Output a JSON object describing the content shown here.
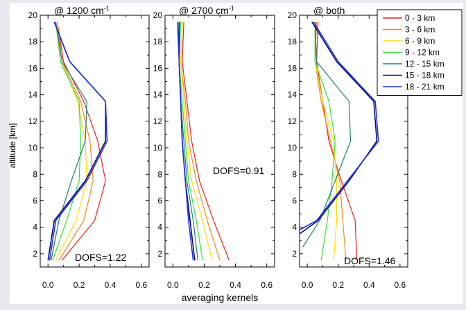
{
  "chart_data": [
    {
      "type": "line",
      "title": "@ 1200 cm",
      "title_sup": "-1",
      "ylabel": "altitude [km]",
      "xlim": [
        -0.05,
        0.65
      ],
      "ylim": [
        1,
        20
      ],
      "xticks": [
        "0.0",
        "0.2",
        "0.4",
        "0.6"
      ],
      "yticks": [
        "2",
        "4",
        "6",
        "8",
        "10",
        "12",
        "14",
        "16",
        "18",
        "20"
      ],
      "annotation": "DOFS=1.22",
      "series": [
        {
          "name": "0 - 3 km",
          "color": "#e8201e",
          "x": [
            0.09,
            0.3,
            0.37,
            0.32,
            0.23,
            0.1,
            0.06
          ],
          "y": [
            1.5,
            4.5,
            7.5,
            10.5,
            13.5,
            16.5,
            19.5
          ]
        },
        {
          "name": "3 - 6 km",
          "color": "#f08a1c",
          "x": [
            0.07,
            0.23,
            0.29,
            0.27,
            0.21,
            0.09,
            0.06
          ],
          "y": [
            1.5,
            4.5,
            7.5,
            10.5,
            13.5,
            16.5,
            19.5
          ]
        },
        {
          "name": "6 - 9 km",
          "color": "#ffe000",
          "x": [
            0.05,
            0.18,
            0.25,
            0.24,
            0.19,
            0.09,
            0.05
          ],
          "y": [
            1.5,
            4.5,
            7.5,
            10.5,
            13.5,
            16.5,
            19.5
          ]
        },
        {
          "name": "9 - 12 km",
          "color": "#33e033",
          "x": [
            0.03,
            0.12,
            0.2,
            0.21,
            0.2,
            0.08,
            0.05
          ],
          "y": [
            1.5,
            4.5,
            7.5,
            10.5,
            13.5,
            16.5,
            19.5
          ]
        },
        {
          "name": "12 - 15 km",
          "color": "#1e7e6e",
          "x": [
            0.02,
            0.07,
            0.15,
            0.24,
            0.25,
            0.09,
            0.05
          ],
          "y": [
            1.5,
            4.5,
            7.5,
            10.5,
            13.5,
            16.5,
            19.5
          ]
        },
        {
          "name": "15 - 18 km",
          "color": "#0a0a78",
          "x": [
            0.0,
            0.04,
            0.24,
            0.37,
            0.37,
            0.14,
            0.04
          ],
          "y": [
            1.5,
            4.5,
            7.5,
            10.5,
            13.5,
            16.5,
            19.5
          ]
        },
        {
          "name": "18 - 21 km",
          "color": "#2230e0",
          "x": [
            0.01,
            0.05,
            0.25,
            0.38,
            0.37,
            0.14,
            0.04
          ],
          "y": [
            1.5,
            4.5,
            7.5,
            10.5,
            13.5,
            16.5,
            19.5
          ]
        }
      ]
    },
    {
      "type": "line",
      "title": "@ 2700 cm",
      "title_sup": "-1",
      "xlabel": "averaging kernels",
      "xlim": [
        -0.05,
        0.65
      ],
      "ylim": [
        1,
        20
      ],
      "xticks": [
        "0.0",
        "0.2",
        "0.4",
        "0.6"
      ],
      "yticks": [
        "2",
        "4",
        "6",
        "8",
        "10",
        "12",
        "14",
        "16",
        "18",
        "20"
      ],
      "annotation": "DOFS=0.91",
      "series": [
        {
          "name": "0 - 3 km",
          "color": "#e8201e",
          "x": [
            0.36,
            0.26,
            0.17,
            0.12,
            0.09,
            0.06,
            0.07
          ],
          "y": [
            1.5,
            4.5,
            7.5,
            10.5,
            13.5,
            16.5,
            19.5
          ]
        },
        {
          "name": "3 - 6 km",
          "color": "#f08a1c",
          "x": [
            0.3,
            0.22,
            0.15,
            0.1,
            0.08,
            0.05,
            0.06
          ],
          "y": [
            1.5,
            4.5,
            7.5,
            10.5,
            13.5,
            16.5,
            19.5
          ]
        },
        {
          "name": "6 - 9 km",
          "color": "#ffe000",
          "x": [
            0.25,
            0.19,
            0.12,
            0.09,
            0.07,
            0.05,
            0.06
          ],
          "y": [
            1.5,
            4.5,
            7.5,
            10.5,
            13.5,
            16.5,
            19.5
          ]
        },
        {
          "name": "9 - 12 km",
          "color": "#33e033",
          "x": [
            0.19,
            0.15,
            0.1,
            0.08,
            0.06,
            0.04,
            0.05
          ],
          "y": [
            1.5,
            4.5,
            7.5,
            10.5,
            13.5,
            16.5,
            19.5
          ]
        },
        {
          "name": "12 - 15 km",
          "color": "#1e7e6e",
          "x": [
            0.16,
            0.13,
            0.09,
            0.07,
            0.05,
            0.04,
            0.04
          ],
          "y": [
            1.5,
            4.5,
            7.5,
            10.5,
            13.5,
            16.5,
            19.5
          ]
        },
        {
          "name": "15 - 18 km",
          "color": "#0a0a78",
          "x": [
            0.14,
            0.11,
            0.08,
            0.06,
            0.05,
            0.04,
            0.04
          ],
          "y": [
            1.5,
            4.5,
            7.5,
            10.5,
            13.5,
            16.5,
            19.5
          ]
        },
        {
          "name": "18 - 21 km",
          "color": "#2230e0",
          "x": [
            0.13,
            0.1,
            0.08,
            0.06,
            0.05,
            0.04,
            0.03
          ],
          "y": [
            1.5,
            4.5,
            7.5,
            10.5,
            13.5,
            16.5,
            19.5
          ]
        }
      ]
    },
    {
      "type": "line",
      "title": "@ both",
      "xlim": [
        -0.05,
        0.65
      ],
      "ylim": [
        1,
        20
      ],
      "xticks": [
        "0.0",
        "0.2",
        "0.4",
        "0.6"
      ],
      "yticks": [
        "2",
        "4",
        "6",
        "8",
        "10",
        "12",
        "14",
        "16",
        "18",
        "20"
      ],
      "annotation": "DOFS=1.46",
      "legend": "top-right",
      "series": [
        {
          "name": "0 - 3 km",
          "color": "#e8201e",
          "x": [
            0.32,
            0.31,
            0.22,
            0.14,
            0.1,
            0.06,
            0.07
          ],
          "y": [
            1.5,
            4.5,
            7.5,
            10.5,
            13.5,
            16.5,
            19.5
          ]
        },
        {
          "name": "3 - 6 km",
          "color": "#f08a1c",
          "x": [
            0.25,
            0.23,
            0.21,
            0.15,
            0.09,
            0.05,
            0.06
          ],
          "y": [
            1.5,
            4.5,
            7.5,
            10.5,
            13.5,
            16.5,
            19.5
          ]
        },
        {
          "name": "6 - 9 km",
          "color": "#ffe000",
          "x": [
            0.17,
            0.19,
            0.19,
            0.17,
            0.1,
            0.05,
            0.05
          ],
          "y": [
            1.5,
            4.5,
            7.5,
            10.5,
            13.5,
            16.5,
            19.5
          ]
        },
        {
          "name": "9 - 12 km",
          "color": "#33e033",
          "x": [
            0.09,
            0.13,
            0.16,
            0.18,
            0.14,
            0.05,
            0.05
          ],
          "y": [
            1.5,
            4.5,
            7.5,
            10.5,
            13.5,
            16.5,
            19.5
          ]
        },
        {
          "name": "12 - 15 km",
          "color": "#1e7e6e",
          "x": [
            -0.03,
            0.08,
            0.18,
            0.28,
            0.27,
            0.06,
            0.05
          ],
          "y": [
            2.5,
            4.5,
            7.5,
            10.5,
            13.5,
            16.5,
            19.5
          ]
        },
        {
          "name": "15 - 18 km",
          "color": "#0a0a78",
          "x": [
            -0.05,
            0.07,
            0.27,
            0.45,
            0.43,
            0.19,
            0.03
          ],
          "y": [
            3.5,
            4.5,
            7.5,
            10.5,
            13.5,
            16.5,
            19.5
          ]
        },
        {
          "name": "18 - 21 km",
          "color": "#2230e0",
          "x": [
            -0.05,
            0.06,
            0.26,
            0.46,
            0.44,
            0.2,
            0.04
          ],
          "y": [
            3.8,
            4.5,
            7.5,
            10.5,
            13.5,
            16.5,
            19.5
          ]
        }
      ]
    }
  ]
}
